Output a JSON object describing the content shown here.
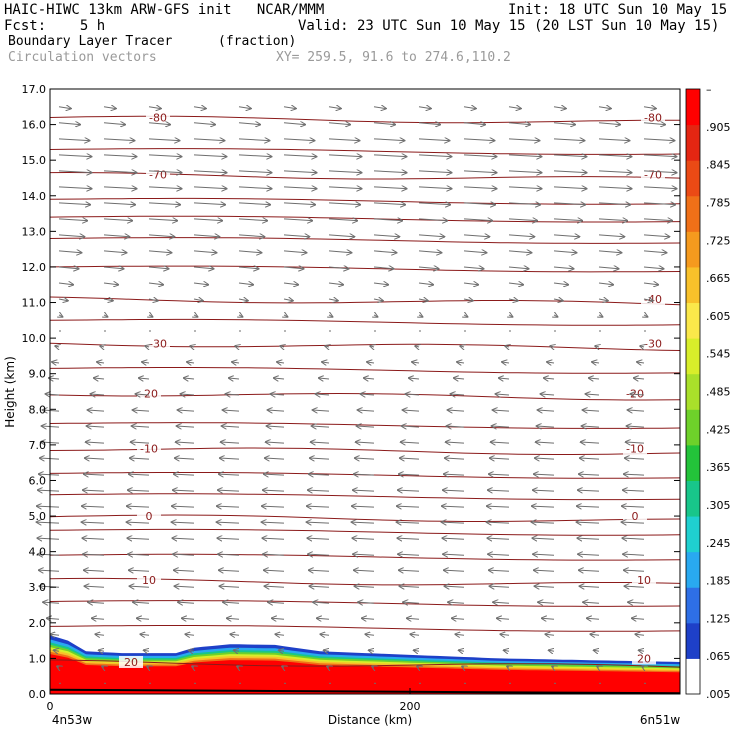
{
  "header": {
    "line1_left": "HAIC-HIWC 13km ARW-GFS init   NCAR/MMM",
    "line1_right": "Init: 18 UTC Sun 10 May 15",
    "line2_left": "Fcst:    5 h",
    "line2_right": "Valid: 23 UTC Sun 10 May 15 (20 LST Sun 10 May 15)",
    "line3_left": "Boundary Layer Tracer",
    "line3_units": "(fraction)",
    "line4_left": "Circulation vectors",
    "line4_xy": "XY= 259.5, 91.6 to 274.6,110.2"
  },
  "colors": {
    "contour": "#8b1a1a",
    "vector": "#6e6e6e",
    "colorbar": [
      "#ffffff",
      "#1e40c8",
      "#2e6fe6",
      "#29a9f0",
      "#1fd0d0",
      "#18c68a",
      "#23c33a",
      "#6ed12a",
      "#a9e02a",
      "#d8ee2a",
      "#fbe84a",
      "#f8c12a",
      "#f59a1e",
      "#f07018",
      "#eb4a15",
      "#e42612",
      "#ff0000"
    ]
  },
  "chart_data": {
    "type": "heatmap",
    "title": "Boundary Layer Tracer",
    "units": "(fraction)",
    "xlabel": "Distance (km)",
    "ylabel": "Height (km)",
    "xlim": [
      0,
      350
    ],
    "ylim": [
      0,
      17
    ],
    "x_ticks": [
      0,
      200
    ],
    "x_end_labels": [
      "4n53w",
      "6n51w"
    ],
    "y_ticks": [
      "0.0",
      "1.0",
      "2.0",
      "3.0",
      "4.0",
      "5.0",
      "6.0",
      "7.0",
      "8.0",
      "9.0",
      "10.0",
      "11.0",
      "12.0",
      "13.0",
      "14.0",
      "15.0",
      "16.0",
      "17.0"
    ],
    "colorbar_ticks": [
      ".005",
      ".065",
      ".125",
      ".185",
      ".245",
      ".305",
      ".365",
      ".425",
      ".485",
      ".545",
      ".605",
      ".665",
      ".725",
      ".785",
      ".845",
      ".905",
      "–"
    ],
    "tracer_top_km": [
      {
        "x": 0,
        "h": 1.65
      },
      {
        "x": 10,
        "h": 1.5
      },
      {
        "x": 20,
        "h": 1.2
      },
      {
        "x": 40,
        "h": 1.15
      },
      {
        "x": 70,
        "h": 1.15
      },
      {
        "x": 80,
        "h": 1.3
      },
      {
        "x": 100,
        "h": 1.4
      },
      {
        "x": 125,
        "h": 1.38
      },
      {
        "x": 150,
        "h": 1.2
      },
      {
        "x": 200,
        "h": 1.1
      },
      {
        "x": 250,
        "h": 1.0
      },
      {
        "x": 300,
        "h": 0.95
      },
      {
        "x": 350,
        "h": 0.9
      }
    ],
    "temperature_contours": [
      {
        "label": "-80",
        "h": 16.2
      },
      {
        "label": "-70",
        "h": 14.6
      },
      {
        "label": "-40",
        "h": 11.1
      },
      {
        "label": "-30",
        "h": 9.85
      },
      {
        "label": "-20",
        "h": 8.45
      },
      {
        "label": "-10",
        "h": 6.9
      },
      {
        "label": "0",
        "h": 5.0
      },
      {
        "label": "10",
        "h": 3.2
      },
      {
        "label": "20",
        "h": 0.9
      }
    ],
    "contour_labels_shown": [
      {
        "text": "-80",
        "x": 60,
        "h": 16.2
      },
      {
        "text": "-80",
        "x": 335,
        "h": 16.2
      },
      {
        "text": "-70",
        "x": 60,
        "h": 14.6
      },
      {
        "text": "-70",
        "x": 335,
        "h": 14.6
      },
      {
        "text": "-40",
        "x": 335,
        "h": 11.1
      },
      {
        "text": "-30",
        "x": 60,
        "h": 9.85
      },
      {
        "text": "-30",
        "x": 335,
        "h": 9.85
      },
      {
        "text": "-20",
        "x": 55,
        "h": 8.45
      },
      {
        "text": "-20",
        "x": 325,
        "h": 8.45
      },
      {
        "text": "-10",
        "x": 55,
        "h": 6.9
      },
      {
        "text": "-10",
        "x": 325,
        "h": 6.9
      },
      {
        "text": "0",
        "x": 55,
        "h": 5.0
      },
      {
        "text": "0",
        "x": 325,
        "h": 5.0
      },
      {
        "text": "10",
        "x": 55,
        "h": 3.2
      },
      {
        "text": "10",
        "x": 330,
        "h": 3.2
      },
      {
        "text": "20",
        "x": 45,
        "h": 0.9
      },
      {
        "text": "20",
        "x": 330,
        "h": 1.0
      }
    ],
    "wind_u_by_height": [
      {
        "h": 0.5,
        "u": 0
      },
      {
        "h": 1.8,
        "u": -0.3
      },
      {
        "h": 3.0,
        "u": -0.6
      },
      {
        "h": 5.0,
        "u": -0.7
      },
      {
        "h": 8.0,
        "u": -0.5
      },
      {
        "h": 10.5,
        "u": 0.05
      },
      {
        "h": 12.0,
        "u": 0.6
      },
      {
        "h": 14.0,
        "u": 1.0
      },
      {
        "h": 15.5,
        "u": 1.0
      },
      {
        "h": 16.6,
        "u": 0.3
      }
    ]
  }
}
